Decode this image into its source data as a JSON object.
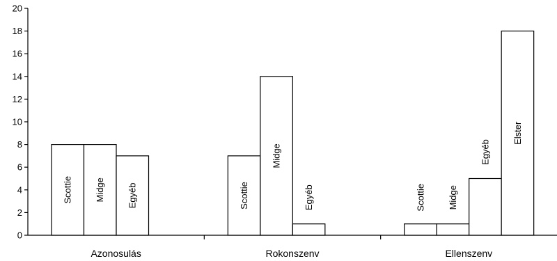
{
  "chart_data": {
    "type": "bar",
    "title": "",
    "xlabel": "",
    "ylabel": "",
    "ylim": [
      0,
      20
    ],
    "yticks": [
      "0",
      "2",
      "4",
      "6",
      "8",
      "10",
      "12",
      "14",
      "16",
      "18",
      "20"
    ],
    "grid": false,
    "legend": "none",
    "groups": [
      {
        "category": "Azonosulás",
        "bars": [
          {
            "label": "Scottie",
            "value": 8
          },
          {
            "label": "Midge",
            "value": 8
          },
          {
            "label": "Egyéb",
            "value": 7
          }
        ]
      },
      {
        "category": "Rokonszenv",
        "bars": [
          {
            "label": "Scottie",
            "value": 7
          },
          {
            "label": "Midge",
            "value": 14
          },
          {
            "label": "Egyéb",
            "value": 1
          }
        ]
      },
      {
        "category": "Ellenszenv",
        "bars": [
          {
            "label": "Scottie",
            "value": 1
          },
          {
            "label": "Midge",
            "value": 1
          },
          {
            "label": "Egyéb",
            "value": 5
          },
          {
            "label": "Elster",
            "value": 18
          }
        ]
      }
    ],
    "colors": {
      "bar_fill": "#ffffff",
      "bar_stroke": "#000000"
    }
  }
}
